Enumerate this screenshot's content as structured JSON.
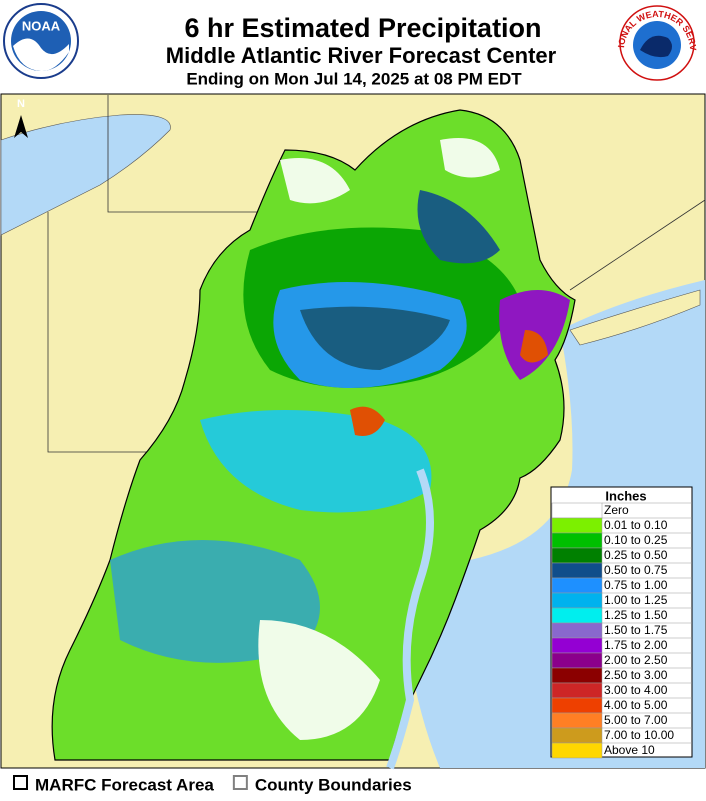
{
  "header": {
    "title": "6 hr Estimated Precipitation",
    "subtitle": "Middle Atlantic River Forecast Center",
    "valid_time": "Ending on Mon Jul 14, 2025 at 08 PM EDT",
    "left_logo": "NOAA",
    "right_logo": "NATIONAL WEATHER SERVICE"
  },
  "map": {
    "north_label": "N"
  },
  "legend": {
    "title": "Inches",
    "entries": [
      {
        "label": "Zero",
        "color": "#ffffff"
      },
      {
        "label": "0.01 to 0.10",
        "color": "#7cf000"
      },
      {
        "label": "0.10 to 0.25",
        "color": "#00c000"
      },
      {
        "label": "0.25 to 0.50",
        "color": "#008000"
      },
      {
        "label": "0.50 to 0.75",
        "color": "#104e8b"
      },
      {
        "label": "0.75 to 1.00",
        "color": "#1e90ff"
      },
      {
        "label": "1.00 to 1.25",
        "color": "#00b2ee"
      },
      {
        "label": "1.25 to 1.50",
        "color": "#00eeee"
      },
      {
        "label": "1.50 to 1.75",
        "color": "#8968cd"
      },
      {
        "label": "1.75 to 2.00",
        "color": "#9400d3"
      },
      {
        "label": "2.00 to 2.50",
        "color": "#8b008b"
      },
      {
        "label": "2.50 to 3.00",
        "color": "#8b0000"
      },
      {
        "label": "3.00 to 4.00",
        "color": "#cd2626"
      },
      {
        "label": "4.00 to 5.00",
        "color": "#ee4000"
      },
      {
        "label": "5.00 to 7.00",
        "color": "#ff7f24"
      },
      {
        "label": "7.00 to 10.00",
        "color": "#cd9b1d"
      },
      {
        "label": "Above 10",
        "color": "#ffd700"
      }
    ]
  },
  "footer": {
    "items": [
      {
        "label": "MARFC Forecast Area",
        "color": "#000000"
      },
      {
        "label": "County Boundaries",
        "color": "#808080"
      }
    ]
  }
}
